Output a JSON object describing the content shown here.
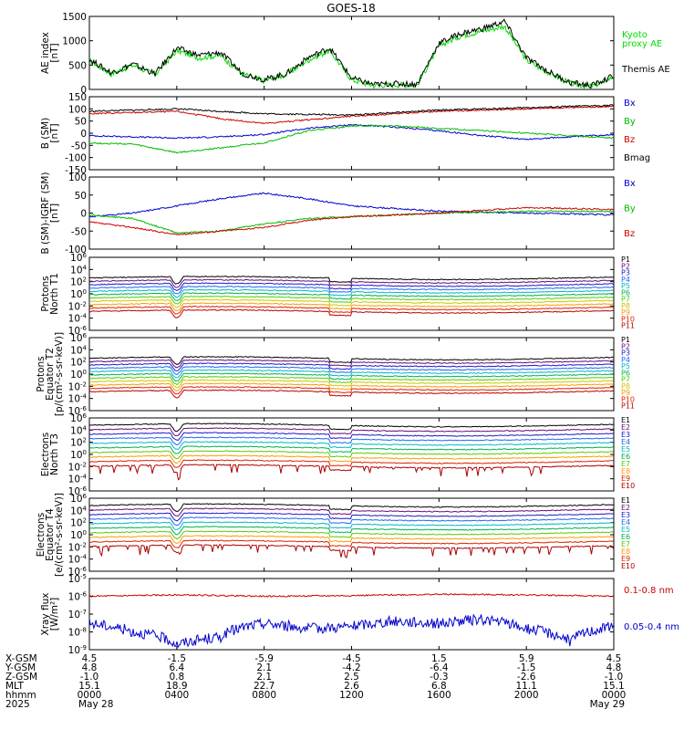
{
  "title": "GOES-18",
  "panels": [
    {
      "id": "ae",
      "ylabel_lines": [
        "AE index",
        "[nT]"
      ],
      "yticks": [
        "1500",
        "1000",
        "500",
        "0"
      ],
      "legend": [
        {
          "text": "Kyoto",
          "color": "#00dd00"
        },
        {
          "text": "proxy AE",
          "color": "#00dd00"
        },
        {
          "text": "Themis AE",
          "color": "#000000"
        }
      ]
    },
    {
      "id": "bsm",
      "ylabel_lines": [
        "B (SM)",
        "[nT]"
      ],
      "yticks": [
        "150",
        "100",
        "50",
        "0",
        "-50",
        "-100",
        "-150"
      ],
      "legend": [
        {
          "text": "Bx",
          "color": "#0000cc"
        },
        {
          "text": "By",
          "color": "#00bb00"
        },
        {
          "text": "Bz",
          "color": "#cc0000"
        },
        {
          "text": "Bmag",
          "color": "#000000"
        }
      ]
    },
    {
      "id": "bigrf",
      "ylabel_lines": [
        "B (SM)-IGRF (SM)",
        "[nT]"
      ],
      "yticks": [
        "100",
        "50",
        "0",
        "-50",
        "-100"
      ],
      "legend": [
        {
          "text": "Bx",
          "color": "#0000cc"
        },
        {
          "text": "By",
          "color": "#00bb00"
        },
        {
          "text": "Bz",
          "color": "#cc0000"
        }
      ]
    },
    {
      "id": "pn",
      "ylabel_lines": [
        "Protons",
        "North T1"
      ],
      "yticks": [
        {
          "b": "10",
          "e": "6"
        },
        {
          "b": "10",
          "e": "4"
        },
        {
          "b": "10",
          "e": "2"
        },
        {
          "b": "10",
          "e": "0"
        },
        {
          "b": "10",
          "e": "-2"
        },
        {
          "b": "10",
          "e": "-4"
        },
        {
          "b": "10",
          "e": "-6"
        }
      ],
      "channels": [
        "P1",
        "P2",
        "P3",
        "P4",
        "P5",
        "P6",
        "P7",
        "P8",
        "P9",
        "P10",
        "P11"
      ]
    },
    {
      "id": "pe",
      "ylabel_lines": [
        "Protons",
        "Equator T2",
        "[p/(cm²-s-sr-keV)]"
      ],
      "yticks": [
        {
          "b": "10",
          "e": "6"
        },
        {
          "b": "10",
          "e": "4"
        },
        {
          "b": "10",
          "e": "2"
        },
        {
          "b": "10",
          "e": "0"
        },
        {
          "b": "10",
          "e": "-2"
        },
        {
          "b": "10",
          "e": "-4"
        },
        {
          "b": "10",
          "e": "-6"
        }
      ],
      "channels": [
        "P1",
        "P2",
        "P3",
        "P4",
        "P5",
        "P6",
        "P7",
        "P8",
        "P9",
        "P10",
        "P11"
      ]
    },
    {
      "id": "en",
      "ylabel_lines": [
        "Electrons",
        "North T3"
      ],
      "yticks": [
        {
          "b": "10",
          "e": "6"
        },
        {
          "b": "10",
          "e": "4"
        },
        {
          "b": "10",
          "e": "2"
        },
        {
          "b": "10",
          "e": "0"
        },
        {
          "b": "10",
          "e": "-2"
        },
        {
          "b": "10",
          "e": "-4"
        },
        {
          "b": "10",
          "e": "-6"
        }
      ],
      "channels": [
        "E1",
        "E2",
        "E3",
        "E4",
        "E5",
        "E6",
        "E7",
        "E8",
        "E9",
        "E10"
      ]
    },
    {
      "id": "ee",
      "ylabel_lines": [
        "Electrons",
        "Equator T4",
        "[e/(cm²-s-sr-keV)]"
      ],
      "yticks": [
        {
          "b": "10",
          "e": "6"
        },
        {
          "b": "10",
          "e": "4"
        },
        {
          "b": "10",
          "e": "2"
        },
        {
          "b": "10",
          "e": "0"
        },
        {
          "b": "10",
          "e": "-2"
        },
        {
          "b": "10",
          "e": "-4"
        },
        {
          "b": "10",
          "e": "-6"
        }
      ],
      "channels": [
        "E1",
        "E2",
        "E3",
        "E4",
        "E5",
        "E6",
        "E7",
        "E8",
        "E9",
        "E10"
      ]
    },
    {
      "id": "xray",
      "ylabel_lines": [
        "Xray flux",
        "[W/m²]"
      ],
      "yticks": [
        {
          "b": "10",
          "e": "-5"
        },
        {
          "b": "10",
          "e": "-6"
        },
        {
          "b": "10",
          "e": "-7"
        },
        {
          "b": "10",
          "e": "-8"
        },
        {
          "b": "10",
          "e": "-9"
        }
      ],
      "legend": [
        {
          "text": "0.1-0.8 nm",
          "color": "#cc0000"
        },
        {
          "text": "0.05-0.4 nm",
          "color": "#0000cc"
        }
      ]
    }
  ],
  "channel_colors": {
    "P": [
      "#000000",
      "#6a0a7a",
      "#1a1acc",
      "#2266ee",
      "#00b7c8",
      "#00b050",
      "#55cc00",
      "#c8c800",
      "#ff9900",
      "#dd2200",
      "#bb0000"
    ],
    "E": [
      "#000000",
      "#6a0a7a",
      "#1a1acc",
      "#2266ee",
      "#00b7c8",
      "#00b050",
      "#55cc00",
      "#ff9900",
      "#dd2200",
      "#aa0000"
    ]
  },
  "xaxis": {
    "rows": [
      {
        "label": "X-GSM",
        "values": [
          "4.5",
          "-1.5",
          "-5.9",
          "-4.5",
          "1.5",
          "5.9",
          "4.5"
        ]
      },
      {
        "label": "Y-GSM",
        "values": [
          "4.8",
          "6.4",
          "2.1",
          "-4.2",
          "-6.4",
          "-1.5",
          "4.8"
        ]
      },
      {
        "label": "Z-GSM",
        "values": [
          "-1.0",
          "0.8",
          "2.1",
          "2.5",
          "-0.3",
          "-2.6",
          "-1.0"
        ]
      },
      {
        "label": "MLT",
        "values": [
          "15.1",
          "18.9",
          "22.7",
          "2.6",
          "6.8",
          "11.1",
          "15.1"
        ]
      },
      {
        "label": "hhmm",
        "values": [
          "0000",
          "0400",
          "0800",
          "1200",
          "1600",
          "2000",
          "0000"
        ]
      },
      {
        "label": "2025",
        "values": [
          "May 28",
          "",
          "",
          "",
          "",
          "",
          "May 29"
        ]
      }
    ]
  },
  "chart_data": {
    "type": "line",
    "title": "GOES-18",
    "x_hours": [
      0,
      4,
      8,
      12,
      16,
      20,
      24
    ],
    "panels": [
      {
        "name": "AE index",
        "ylim": [
          0,
          1500
        ],
        "series": [
          {
            "name": "Kyoto proxy AE",
            "color": "#00dd00",
            "x": [
              0,
              1,
              2,
              3,
              4,
              5,
              6,
              7,
              8,
              9,
              10,
              11,
              12,
              13,
              14,
              15,
              16,
              17,
              18,
              19,
              20,
              21,
              22,
              23,
              24
            ],
            "y": [
              600,
              320,
              500,
              300,
              800,
              650,
              700,
              320,
              180,
              300,
              600,
              800,
              200,
              80,
              100,
              90,
              900,
              1100,
              1200,
              1300,
              600,
              350,
              120,
              60,
              260
            ]
          },
          {
            "name": "Themis AE",
            "color": "#000000",
            "x": [
              0,
              1,
              2,
              3,
              4,
              5,
              6,
              7,
              8,
              9,
              10,
              11,
              12,
              13,
              14,
              15,
              16,
              17,
              18,
              19,
              20,
              21,
              22,
              23,
              24
            ],
            "y": [
              620,
              340,
              520,
              320,
              850,
              700,
              760,
              330,
              200,
              320,
              650,
              850,
              230,
              100,
              120,
              110,
              950,
              1150,
              1250,
              1400,
              650,
              370,
              140,
              80,
              280
            ]
          }
        ]
      },
      {
        "name": "B (SM)",
        "ylim": [
          -150,
          150
        ],
        "series": [
          {
            "name": "Bx",
            "color": "#0000cc",
            "x": [
              0,
              4,
              6,
              8,
              10,
              12,
              14,
              16,
              18,
              20,
              22,
              24
            ],
            "y": [
              -10,
              -20,
              -15,
              -5,
              20,
              35,
              25,
              10,
              -10,
              -25,
              -15,
              -5
            ]
          },
          {
            "name": "By",
            "color": "#00bb00",
            "x": [
              0,
              2,
              4,
              6,
              8,
              10,
              12,
              14,
              16,
              18,
              20,
              22,
              24
            ],
            "y": [
              -40,
              -45,
              -80,
              -60,
              -40,
              10,
              30,
              30,
              20,
              10,
              0,
              -10,
              -20
            ]
          },
          {
            "name": "Bz",
            "color": "#cc0000",
            "x": [
              0,
              4,
              6,
              8,
              12,
              16,
              20,
              24
            ],
            "y": [
              80,
              90,
              60,
              40,
              70,
              90,
              100,
              110
            ]
          },
          {
            "name": "Bmag",
            "color": "#000000",
            "x": [
              0,
              4,
              8,
              12,
              16,
              20,
              24
            ],
            "y": [
              90,
              100,
              80,
              75,
              95,
              105,
              115
            ]
          }
        ]
      },
      {
        "name": "B (SM)-IGRF (SM)",
        "ylim": [
          -100,
          100
        ],
        "series": [
          {
            "name": "Bx",
            "color": "#0000cc",
            "x": [
              0,
              2,
              4,
              6,
              8,
              10,
              12,
              16,
              20,
              24
            ],
            "y": [
              -10,
              0,
              20,
              40,
              55,
              40,
              20,
              5,
              0,
              -5
            ]
          },
          {
            "name": "By",
            "color": "#00bb00",
            "x": [
              0,
              2,
              4,
              6,
              8,
              10,
              12,
              16,
              20,
              24
            ],
            "y": [
              -5,
              -15,
              -55,
              -50,
              -30,
              -15,
              -10,
              0,
              5,
              5
            ]
          },
          {
            "name": "Bz",
            "color": "#cc0000",
            "x": [
              0,
              2,
              4,
              6,
              8,
              10,
              12,
              16,
              20,
              24
            ],
            "y": [
              -25,
              -40,
              -60,
              -50,
              -40,
              -20,
              -10,
              0,
              15,
              10
            ]
          }
        ]
      },
      {
        "name": "Protons North T1",
        "yscale": "log",
        "ylim": [
          1e-06,
          1000000.0
        ]
      },
      {
        "name": "Protons Equator T2",
        "yscale": "log",
        "ylim": [
          1e-06,
          1000000.0
        ]
      },
      {
        "name": "Electrons North T3",
        "yscale": "log",
        "ylim": [
          1e-06,
          1000000.0
        ]
      },
      {
        "name": "Electrons Equator T4",
        "yscale": "log",
        "ylim": [
          1e-06,
          1000000.0
        ]
      },
      {
        "name": "Xray flux",
        "yscale": "log",
        "ylim": [
          1e-09,
          1e-05
        ],
        "series": [
          {
            "name": "0.1-0.8 nm",
            "color": "#cc0000",
            "x": [
              0,
              4,
              8,
              12,
              16,
              20,
              24
            ],
            "y": [
              1e-06,
              1.2e-06,
              1e-06,
              1.1e-06,
              1.3e-06,
              1.2e-06,
              1e-06
            ]
          },
          {
            "name": "0.05-0.4 nm",
            "color": "#0000cc",
            "x": [
              0,
              2,
              4,
              6,
              8,
              10,
              12,
              14,
              16,
              18,
              20,
              22,
              24
            ],
            "y": [
              3e-08,
              1e-08,
              2e-09,
              5e-09,
              3e-08,
              1.5e-08,
              2e-08,
              4e-08,
              3e-08,
              5e-08,
              1.5e-08,
              3e-09,
              2e-08
            ]
          }
        ]
      }
    ]
  }
}
